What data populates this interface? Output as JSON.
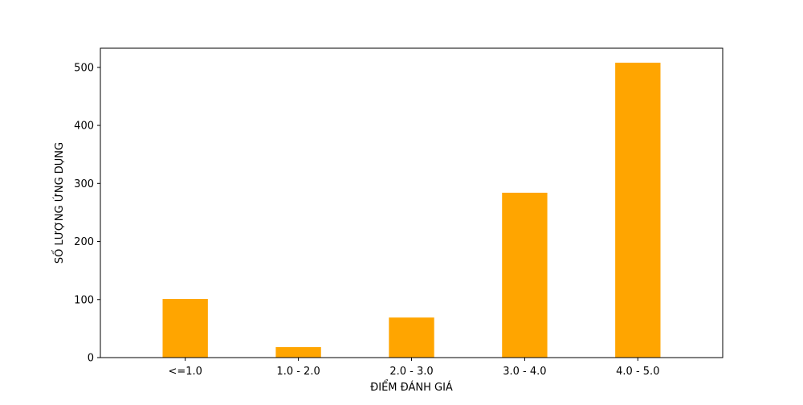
{
  "chart_data": {
    "type": "bar",
    "title": "",
    "xlabel": "ĐIỂM ĐÁNH GIÁ",
    "ylabel": "SỐ LƯỢNG ỨNG DỤNG",
    "categories": [
      "<=1.0",
      "1.0 - 2.0",
      "2.0 - 3.0",
      "3.0 - 4.0",
      "4.0 - 5.0"
    ],
    "values": [
      101,
      18,
      69,
      284,
      508
    ],
    "ylim": [
      0,
      533
    ],
    "yticks": [
      0,
      100,
      200,
      300,
      400,
      500
    ],
    "grid": false,
    "legend": "none",
    "bar_color": "#FFA500"
  }
}
